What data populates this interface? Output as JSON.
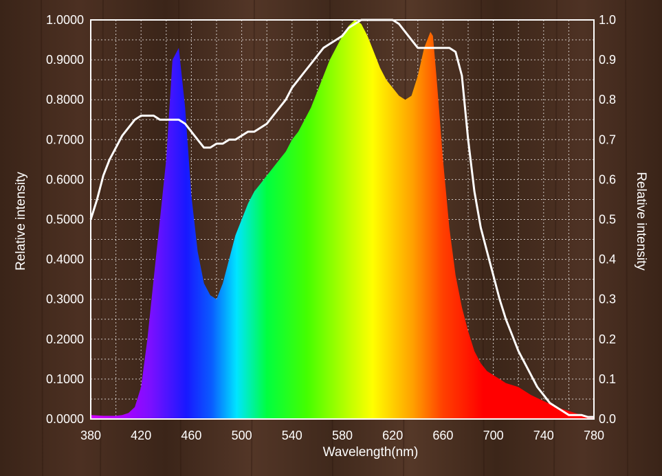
{
  "chart_data": {
    "type": "area",
    "title": "",
    "xlabel": "Wavelength(nm)",
    "ylabel_left": "Relative intensity",
    "ylabel_right": "Relative intensity",
    "xlim": [
      380,
      780
    ],
    "ylim": [
      0,
      1
    ],
    "grid": true,
    "x_ticks": [
      "380",
      "420",
      "460",
      "500",
      "540",
      "580",
      "620",
      "660",
      "700",
      "740",
      "780"
    ],
    "y_ticks_left": [
      "0.0000",
      "0.1000",
      "0.2000",
      "0.3000",
      "0.4000",
      "0.5000",
      "0.6000",
      "0.7000",
      "0.8000",
      "0.9000",
      "1.0000"
    ],
    "y_ticks_right": [
      "0.0",
      "0.1",
      "0.2",
      "0.3",
      "0.4",
      "0.5",
      "0.6",
      "0.7",
      "0.8",
      "0.9",
      "1.0"
    ],
    "series": [
      {
        "style": "filled spectrum",
        "x": [
          380,
          390,
          400,
          405,
          410,
          415,
          420,
          425,
          430,
          435,
          440,
          445,
          450,
          455,
          460,
          465,
          470,
          475,
          480,
          485,
          490,
          495,
          500,
          505,
          510,
          515,
          520,
          525,
          530,
          535,
          540,
          545,
          550,
          555,
          560,
          565,
          570,
          575,
          580,
          585,
          590,
          595,
          600,
          605,
          610,
          615,
          620,
          625,
          630,
          635,
          640,
          645,
          650,
          652,
          655,
          660,
          665,
          670,
          675,
          680,
          685,
          690,
          695,
          700,
          705,
          710,
          715,
          720,
          730,
          740,
          750,
          760,
          770,
          780
        ],
        "y": [
          0.01,
          0.008,
          0.008,
          0.01,
          0.015,
          0.03,
          0.08,
          0.2,
          0.35,
          0.5,
          0.65,
          0.9,
          0.93,
          0.78,
          0.56,
          0.42,
          0.34,
          0.31,
          0.3,
          0.34,
          0.4,
          0.46,
          0.5,
          0.54,
          0.57,
          0.59,
          0.61,
          0.63,
          0.65,
          0.67,
          0.7,
          0.72,
          0.75,
          0.78,
          0.82,
          0.86,
          0.9,
          0.93,
          0.96,
          0.985,
          1.0,
          0.99,
          0.96,
          0.92,
          0.88,
          0.85,
          0.83,
          0.81,
          0.8,
          0.81,
          0.86,
          0.93,
          0.97,
          0.96,
          0.85,
          0.65,
          0.48,
          0.36,
          0.28,
          0.22,
          0.17,
          0.14,
          0.12,
          0.11,
          0.1,
          0.09,
          0.085,
          0.08,
          0.06,
          0.045,
          0.03,
          0.02,
          0.01,
          0.005
        ]
      },
      {
        "style": "white line",
        "color": "#ffffff",
        "x": [
          380,
          385,
          390,
          395,
          400,
          405,
          410,
          415,
          420,
          425,
          430,
          435,
          440,
          445,
          450,
          455,
          460,
          465,
          470,
          475,
          480,
          485,
          490,
          495,
          500,
          505,
          510,
          515,
          520,
          525,
          530,
          535,
          540,
          545,
          550,
          555,
          560,
          565,
          570,
          575,
          580,
          585,
          590,
          595,
          600,
          605,
          610,
          615,
          620,
          625,
          630,
          635,
          640,
          645,
          650,
          655,
          660,
          665,
          670,
          675,
          680,
          685,
          690,
          695,
          700,
          705,
          710,
          715,
          720,
          725,
          730,
          735,
          740,
          745,
          750,
          755,
          760,
          765,
          770,
          775,
          780
        ],
        "y": [
          0.5,
          0.55,
          0.61,
          0.65,
          0.68,
          0.71,
          0.73,
          0.75,
          0.76,
          0.76,
          0.76,
          0.75,
          0.75,
          0.75,
          0.75,
          0.74,
          0.72,
          0.7,
          0.68,
          0.68,
          0.69,
          0.69,
          0.7,
          0.7,
          0.71,
          0.72,
          0.72,
          0.73,
          0.74,
          0.76,
          0.78,
          0.8,
          0.83,
          0.85,
          0.87,
          0.89,
          0.91,
          0.93,
          0.94,
          0.95,
          0.96,
          0.98,
          0.99,
          1.0,
          1.0,
          1.0,
          1.0,
          1.0,
          1.0,
          0.99,
          0.97,
          0.95,
          0.93,
          0.93,
          0.93,
          0.93,
          0.93,
          0.93,
          0.92,
          0.86,
          0.7,
          0.57,
          0.48,
          0.42,
          0.36,
          0.3,
          0.25,
          0.21,
          0.17,
          0.14,
          0.11,
          0.08,
          0.06,
          0.04,
          0.03,
          0.02,
          0.01,
          0.01,
          0.01,
          0.005,
          0.005
        ]
      }
    ]
  }
}
